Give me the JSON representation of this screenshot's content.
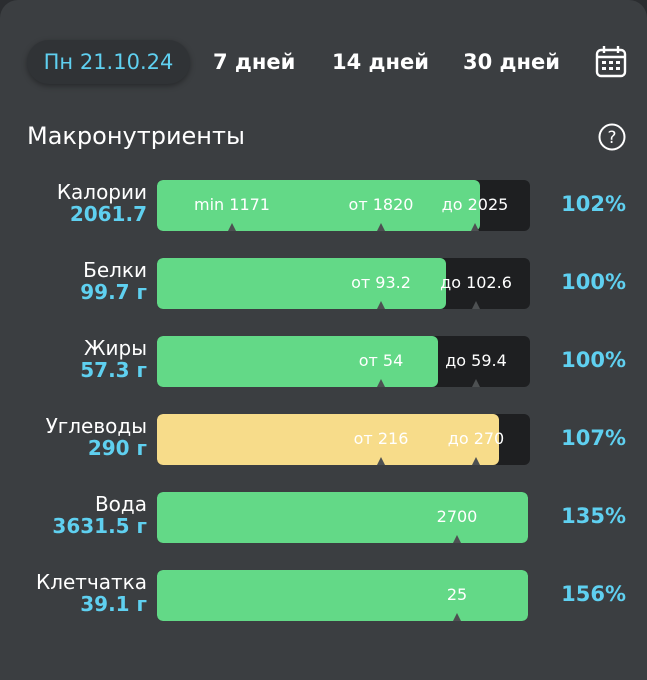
{
  "tabs": [
    "Пн 21.10.24",
    "7 дней",
    "14 дней",
    "30 дней"
  ],
  "section": {
    "title": "Макронутриенты",
    "rows": [
      {
        "name": "Калории",
        "amount": "2061.7",
        "markers": [
          "min 1171",
          "от 1820",
          "до 2025"
        ],
        "percent": "102%"
      },
      {
        "name": "Белки",
        "amount": "99.7 г",
        "markers": [
          "от 93.2",
          "до 102.6"
        ],
        "percent": "100%"
      },
      {
        "name": "Жиры",
        "amount": "57.3 г",
        "markers": [
          "от 54",
          "до 59.4"
        ],
        "percent": "100%"
      },
      {
        "name": "Углеводы",
        "amount": "290 г",
        "markers": [
          "от 216",
          "до 270"
        ],
        "percent": "107%"
      },
      {
        "name": "Вода",
        "amount": "3631.5 г",
        "markers": [
          "2700"
        ],
        "percent": "135%"
      },
      {
        "name": "Клетчатка",
        "amount": "39.1 г",
        "markers": [
          "25"
        ],
        "percent": "156%"
      }
    ]
  }
}
